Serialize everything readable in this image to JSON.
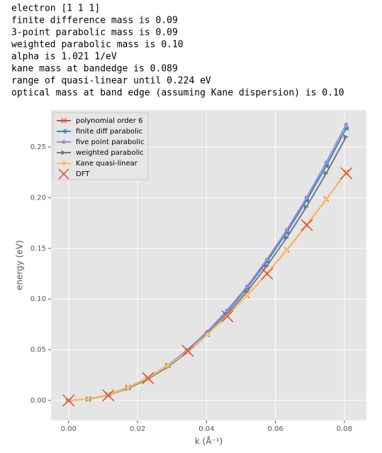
{
  "output_lines": [
    "electron [1 1 1]",
    "finite difference mass is 0.09",
    "3-point parabolic mass is 0.09",
    "weighted parabolic mass is 0.10",
    "alpha is 1.021 1/eV",
    "kane mass at bandedge is 0.089",
    "range of quasi-linear until 0.224 eV",
    "optical mass at band edge (assuming Kane dispersion) is 0.10"
  ],
  "chart_data": {
    "type": "line",
    "xlabel": "k (Å⁻¹)",
    "ylabel": "energy (eV)",
    "x": [
      0,
      0.00575,
      0.0115,
      0.01725,
      0.023,
      0.02875,
      0.0345,
      0.04025,
      0.046,
      0.05175,
      0.0575,
      0.06325,
      0.069,
      0.07475,
      0.0805
    ],
    "series": [
      {
        "name": "polynomial order 6",
        "color": "#E24A33",
        "marker": "x",
        "values": [
          0,
          0.0014,
          0.0057,
          0.0128,
          0.0224,
          0.0344,
          0.0487,
          0.0651,
          0.0834,
          0.1035,
          0.1252,
          0.1484,
          0.1729,
          0.1985,
          0.2251
        ]
      },
      {
        "name": "finite diff parabolic",
        "color": "#348ABD",
        "marker": "triangle-left",
        "values": [
          0,
          0.0014,
          0.0055,
          0.0123,
          0.0219,
          0.0342,
          0.0493,
          0.0671,
          0.0876,
          0.1109,
          0.1369,
          0.1656,
          0.1971,
          0.2313,
          0.2683
        ]
      },
      {
        "name": "five point parabolic",
        "color": "#988ED5",
        "marker": "circle",
        "values": [
          0,
          0.0014,
          0.0056,
          0.0125,
          0.0222,
          0.0347,
          0.05,
          0.068,
          0.0889,
          0.1125,
          0.1389,
          0.168,
          0.2,
          0.2347,
          0.2722
        ]
      },
      {
        "name": "weighted parabolic",
        "color": "#777777",
        "marker": "triangle-right",
        "values": [
          0,
          0.0013,
          0.0053,
          0.0119,
          0.0212,
          0.0331,
          0.0477,
          0.065,
          0.0849,
          0.1074,
          0.1326,
          0.1604,
          0.1909,
          0.2241,
          0.2599
        ]
      },
      {
        "name": "Kane quasi-linear",
        "color": "#FBC15E",
        "marker": "circle",
        "values": [
          0,
          0.0014,
          0.0056,
          0.0126,
          0.0221,
          0.0342,
          0.0485,
          0.065,
          0.0835,
          0.1037,
          0.1254,
          0.1487,
          0.1732,
          0.1988,
          0.2255
        ]
      },
      {
        "name": "DFT",
        "color": "#E24A33",
        "type": "scatter",
        "marker": "x",
        "x": [
          0,
          0.01152,
          0.02304,
          0.03456,
          0.04608,
          0.0576,
          0.06912,
          0.0806
        ],
        "values": [
          0,
          0.005,
          0.022,
          0.049,
          0.083,
          0.125,
          0.173,
          0.224
        ]
      }
    ],
    "xlim": [
      -0.0051,
      0.0864
    ],
    "ylim": [
      -0.0196,
      0.2864
    ],
    "xticks": [
      {
        "value": 0,
        "label": "0.00"
      },
      {
        "value": 0.02,
        "label": "0.02"
      },
      {
        "value": 0.04,
        "label": "0.04"
      },
      {
        "value": 0.06,
        "label": "0.06"
      },
      {
        "value": 0.08,
        "label": "0.08"
      }
    ],
    "yticks": [
      {
        "value": 0,
        "label": "0.00"
      },
      {
        "value": 0.05,
        "label": "0.05"
      },
      {
        "value": 0.1,
        "label": "0.10"
      },
      {
        "value": 0.15,
        "label": "0.15"
      },
      {
        "value": 0.2,
        "label": "0.20"
      },
      {
        "value": 0.25,
        "label": "0.25"
      }
    ],
    "grid": true,
    "legend": "upper left"
  }
}
